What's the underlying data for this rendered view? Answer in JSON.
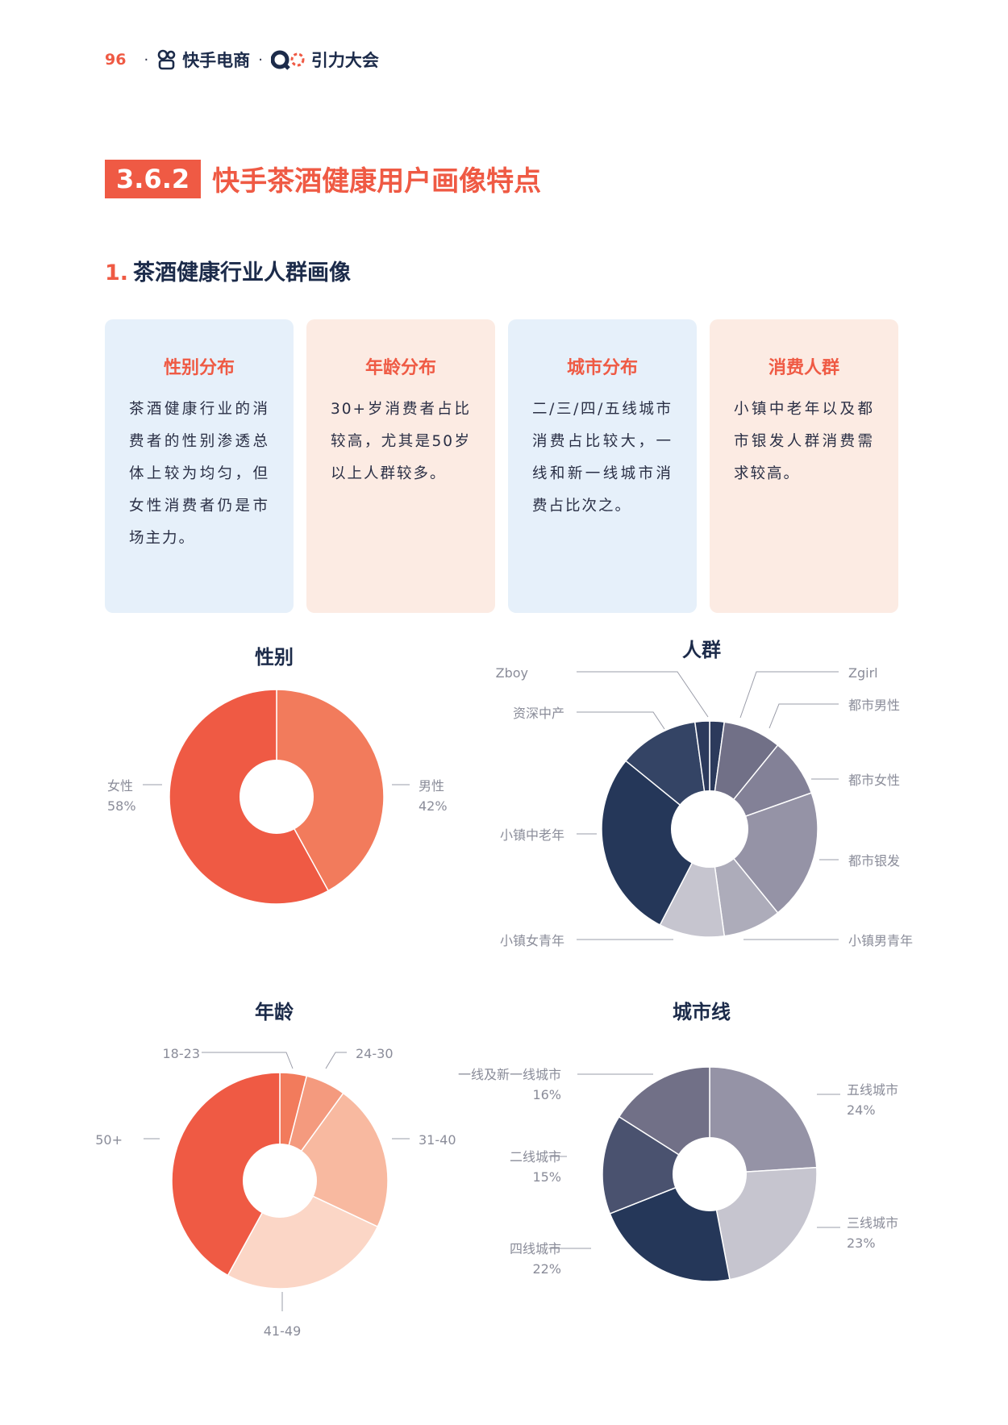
{
  "header": {
    "page_number": "96",
    "separator": "·",
    "brand1": "快手电商",
    "brand2": "引力大会"
  },
  "section": {
    "number": "3.6.2",
    "title": "快手茶酒健康用户画像特点"
  },
  "subsection": {
    "number": "1.",
    "title": "茶酒健康行业人群画像"
  },
  "cards": [
    {
      "title": "性别分布",
      "body": "茶酒健康行业的消费者的性别渗透总体上较为均匀，但女性消费者仍是市场主力。"
    },
    {
      "title": "年龄分布",
      "body": "30+岁消费者占比较高，尤其是50岁以上人群较多。"
    },
    {
      "title": "城市分布",
      "body": "二/三/四/五线城市消费占比较大，一线和新一线城市消费占比次之。"
    },
    {
      "title": "消费人群",
      "body": "小镇中老年以及都市银发人群消费需求较高。"
    }
  ],
  "chart_data": [
    {
      "type": "donut",
      "title": "性别",
      "categories": [
        "男性",
        "女性"
      ],
      "values": [
        42,
        58
      ],
      "labels": [
        "42%",
        "58%"
      ],
      "colors": [
        "#f27b5c",
        "#ef5a44"
      ]
    },
    {
      "type": "donut",
      "title": "人群",
      "categories": [
        "Zgirl",
        "都市男性",
        "都市女性",
        "都市银发",
        "小镇男青年",
        "小镇女青年",
        "小镇中老年",
        "资深中产",
        "Zboy"
      ],
      "values": [
        2,
        8,
        8,
        18,
        8,
        9,
        26,
        11,
        2
      ],
      "colors": [
        "#2c3a5c",
        "#717087",
        "#838197",
        "#9593a6",
        "#adacba",
        "#c6c5cf",
        "#253759",
        "#344465",
        "#2c3a5c"
      ]
    },
    {
      "type": "donut",
      "title": "年龄",
      "categories": [
        "18-23",
        "24-30",
        "31-40",
        "41-49",
        "50+"
      ],
      "values": [
        4,
        6,
        22,
        26,
        42
      ],
      "colors": [
        "#f27b5c",
        "#f49a7e",
        "#f8b9a0",
        "#fbd6c6",
        "#ef5a44"
      ]
    },
    {
      "type": "donut",
      "title": "城市线",
      "categories": [
        "五线城市",
        "三线城市",
        "四线城市",
        "二线城市",
        "一线及新一线城市"
      ],
      "values": [
        24,
        23,
        22,
        15,
        16
      ],
      "labels": [
        "24%",
        "23%",
        "22%",
        "15%",
        "16%"
      ],
      "colors": [
        "#9593a6",
        "#c6c5cf",
        "#253759",
        "#4a526f",
        "#717087"
      ]
    }
  ]
}
